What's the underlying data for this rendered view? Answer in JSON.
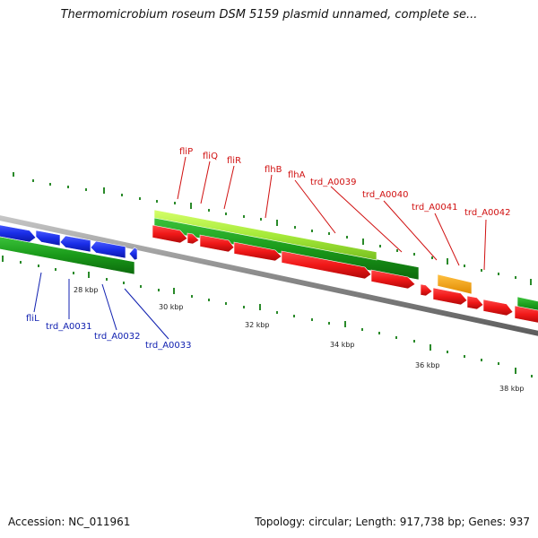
{
  "title": "Thermomicrobium roseum DSM 5159 plasmid unnamed, complete se...",
  "footer": {
    "accession": "Accession: NC_011961",
    "summary": "Topology: circular; Length: 917,738 bp; Genes: 937"
  },
  "colors": {
    "reverse_strand_gene": "#1a9a1a",
    "forward_strand_gene": "#f01818",
    "highlighted_gene": "#a6ea3a",
    "orange_gene": "#f5a011",
    "blue_gene": "#1a2ee8",
    "backbone": "#8a8a8a",
    "tick": "#2a8a2a",
    "upper_label": "#d01010",
    "lower_label": "#1020b0"
  },
  "scale_labels": [
    "28 kbp",
    "30 kbp",
    "32 kbp",
    "34 kbp",
    "36 kbp",
    "38 kbp"
  ],
  "upper_labels": [
    "fliP",
    "fliQ",
    "fliR",
    "flhB",
    "flhA",
    "trd_A0039",
    "trd_A0040",
    "trd_A0041",
    "trd_A0042"
  ],
  "lower_labels": [
    "fliL",
    "trd_A0031",
    "trd_A0032",
    "trd_A0033"
  ]
}
